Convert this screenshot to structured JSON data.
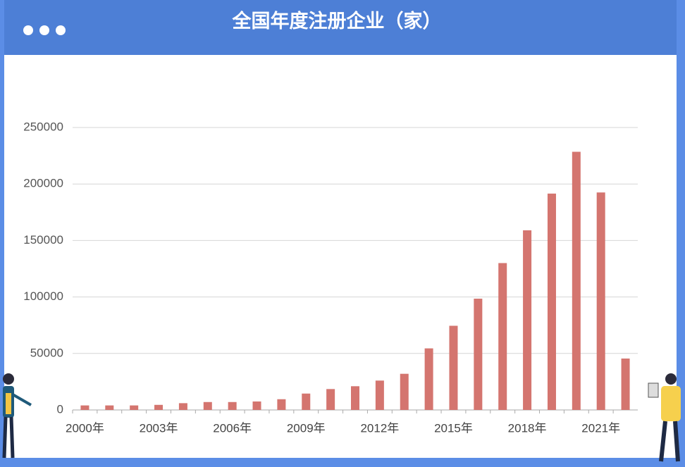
{
  "chart_data": {
    "type": "bar",
    "title": "全国年度注册企业（家）",
    "categories": [
      "2000年",
      null,
      null,
      "2003年",
      null,
      null,
      "2006年",
      null,
      null,
      "2009年",
      null,
      null,
      "2012年",
      null,
      null,
      "2015年",
      null,
      null,
      "2018年",
      null,
      null,
      "2021年",
      null
    ],
    "values": [
      4000,
      4000,
      4000,
      4500,
      6000,
      7000,
      7000,
      7500,
      9500,
      14500,
      18500,
      21000,
      26000,
      32000,
      54500,
      74500,
      98500,
      130000,
      159000,
      191500,
      228500,
      192500,
      45500
    ],
    "color": "#d4756f",
    "ylim": [
      0,
      250000
    ],
    "yticks": [
      0,
      50000,
      100000,
      150000,
      200000,
      250000
    ],
    "grid": true
  }
}
